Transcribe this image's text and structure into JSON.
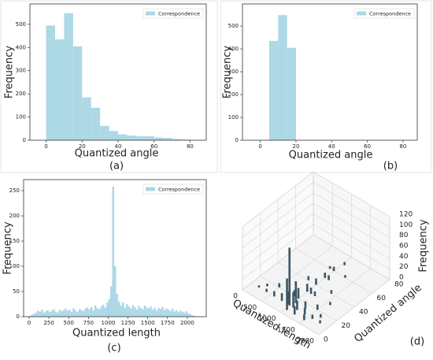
{
  "chart_data": [
    {
      "type": "histogram",
      "caption": "(a)",
      "xlabel": "Quantized angle",
      "ylabel": "Frequency",
      "legend": "upper right",
      "bins": [
        0,
        5,
        10,
        15,
        20,
        25,
        30,
        35,
        40,
        45,
        50,
        55,
        60,
        65,
        70,
        75,
        80
      ],
      "series": [
        {
          "name": "Correspondence",
          "color": "#add8e6",
          "values": [
            495,
            435,
            548,
            405,
            185,
            140,
            62,
            40,
            25,
            20,
            17,
            17,
            12,
            10,
            5,
            3
          ]
        }
      ],
      "xlim": [
        -9,
        89
      ],
      "ylim": [
        0,
        588
      ],
      "xticks": [
        0,
        20,
        40,
        60,
        80
      ],
      "yticks": [
        0,
        100,
        200,
        300,
        400,
        500
      ]
    },
    {
      "type": "histogram",
      "caption": "(b)",
      "xlabel": "Quantized angle",
      "ylabel": "Frequency",
      "legend": "upper right",
      "bins": [
        5,
        10,
        15,
        20
      ],
      "series": [
        {
          "name": "Correspondence",
          "color": "#add8e6",
          "values": [
            435,
            548,
            405
          ]
        }
      ],
      "xlim": [
        -10,
        88
      ],
      "ylim": [
        0,
        597
      ],
      "xticks": [
        0,
        20,
        40,
        60,
        80
      ],
      "yticks": [
        0,
        100,
        200,
        300,
        400,
        500
      ]
    },
    {
      "type": "histogram",
      "caption": "(c)",
      "xlabel": "Quantized length",
      "ylabel": "Frequency",
      "legend": "upper right",
      "bins": [
        0,
        25,
        50,
        75,
        100,
        125,
        150,
        175,
        200,
        225,
        250,
        275,
        300,
        325,
        350,
        375,
        400,
        425,
        450,
        475,
        500,
        525,
        550,
        575,
        600,
        625,
        650,
        675,
        700,
        725,
        750,
        775,
        800,
        825,
        850,
        875,
        900,
        925,
        950,
        975,
        1000,
        1025,
        1050,
        1075,
        1100,
        1125,
        1150,
        1175,
        1200,
        1225,
        1250,
        1275,
        1300,
        1325,
        1350,
        1375,
        1400,
        1425,
        1450,
        1475,
        1500,
        1525,
        1550,
        1575,
        1600,
        1625,
        1650,
        1675,
        1700,
        1725,
        1750,
        1775,
        1800,
        1825,
        1850,
        1875,
        1900,
        1925,
        1950,
        1975,
        2000,
        2025,
        2050,
        2075,
        2100
      ],
      "series": [
        {
          "name": "Correspondence",
          "color": "#add8e6",
          "values": [
            2,
            4,
            6,
            8,
            12,
            10,
            14,
            8,
            11,
            13,
            9,
            12,
            15,
            10,
            8,
            14,
            11,
            13,
            16,
            12,
            14,
            10,
            17,
            12,
            9,
            15,
            13,
            11,
            16,
            18,
            14,
            19,
            12,
            22,
            17,
            15,
            20,
            24,
            18,
            28,
            35,
            60,
            258,
            100,
            45,
            30,
            22,
            28,
            18,
            25,
            20,
            16,
            23,
            19,
            14,
            21,
            17,
            15,
            22,
            18,
            16,
            20,
            14,
            18,
            12,
            17,
            15,
            19,
            13,
            16,
            14,
            11,
            16,
            10,
            13,
            9,
            12,
            10,
            8,
            11,
            7,
            5,
            3,
            2
          ]
        }
      ],
      "xlim": [
        -70,
        2240
      ],
      "ylim": [
        0,
        272
      ],
      "xticks": [
        0,
        250,
        500,
        750,
        1000,
        1250,
        1500,
        1750,
        2000
      ],
      "yticks": [
        0,
        50,
        100,
        150,
        200,
        250
      ]
    },
    {
      "type": "bar3d",
      "caption": "(d)",
      "xlabel": "Quantized length",
      "ylabel": "Quantized angle",
      "zlabel": "Frequency",
      "color": "#3b5663",
      "x": [
        1000,
        1050,
        1050,
        1100,
        950,
        1000,
        1000,
        1000,
        1000,
        1000,
        1100,
        800,
        900,
        1200,
        1300,
        1400,
        1500,
        1600,
        1700,
        1800,
        600,
        500,
        400,
        300,
        200,
        1200,
        1400,
        1600,
        800,
        700,
        1050,
        900,
        1300,
        1100,
        1500,
        1250
      ],
      "y": [
        10,
        5,
        15,
        10,
        10,
        20,
        30,
        40,
        50,
        60,
        30,
        10,
        20,
        10,
        15,
        10,
        20,
        10,
        15,
        10,
        10,
        20,
        10,
        15,
        10,
        30,
        40,
        30,
        40,
        30,
        70,
        60,
        60,
        50,
        5,
        5
      ],
      "values": [
        110,
        60,
        40,
        30,
        25,
        20,
        15,
        12,
        10,
        8,
        12,
        15,
        12,
        18,
        14,
        12,
        10,
        8,
        7,
        6,
        10,
        8,
        6,
        5,
        4,
        9,
        7,
        6,
        8,
        7,
        6,
        5,
        5,
        9,
        11,
        16
      ],
      "xlim": [
        0,
        2000
      ],
      "ylim": [
        0,
        80
      ],
      "zlim": [
        0,
        120
      ],
      "xticks": [
        0,
        500,
        1000,
        1500,
        2000
      ],
      "yticks": [
        0,
        20,
        40,
        60,
        80
      ],
      "zticks": [
        0,
        20,
        40,
        60,
        80,
        100,
        120
      ]
    }
  ]
}
